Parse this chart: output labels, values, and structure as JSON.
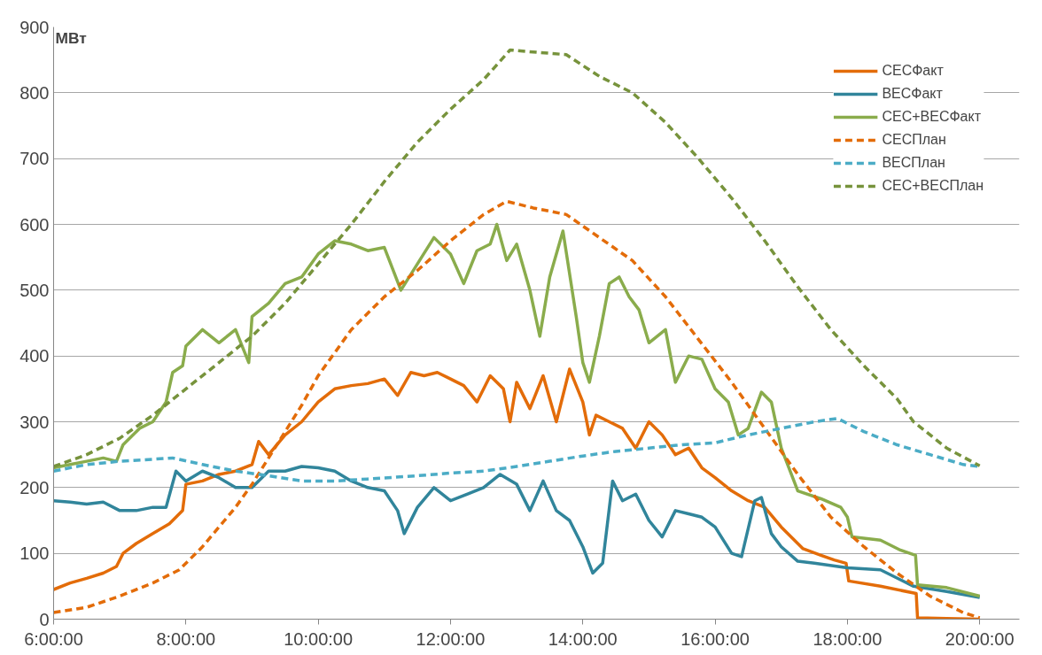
{
  "chart_data": {
    "type": "line",
    "ylabel": "МВт",
    "xlim": [
      6,
      20.6
    ],
    "ylim": [
      0,
      900
    ],
    "xticks": [
      {
        "value": 6,
        "label": "6:00:00"
      },
      {
        "value": 8,
        "label": "8:00:00"
      },
      {
        "value": 10,
        "label": "10:00:00"
      },
      {
        "value": 12,
        "label": "12:00:00"
      },
      {
        "value": 14,
        "label": "14:00:00"
      },
      {
        "value": 16,
        "label": "16:00:00"
      },
      {
        "value": 18,
        "label": "18:00:00"
      },
      {
        "value": 20,
        "label": "20:00:00"
      }
    ],
    "yticks": [
      0,
      100,
      200,
      300,
      400,
      500,
      600,
      700,
      800,
      900
    ],
    "grid": "y",
    "legend": "top right",
    "marker": "none",
    "series": [
      {
        "name": "СЕСФакт",
        "color": "#e36c09",
        "line_style": "solid",
        "x": [
          6.0,
          6.25,
          6.5,
          6.75,
          6.95,
          7.05,
          7.25,
          7.5,
          7.75,
          7.95,
          8.0,
          8.25,
          8.5,
          8.75,
          9.0,
          9.1,
          9.25,
          9.5,
          9.75,
          10.0,
          10.25,
          10.5,
          10.75,
          11.0,
          11.2,
          11.4,
          11.6,
          11.8,
          12.0,
          12.2,
          12.4,
          12.6,
          12.8,
          12.9,
          13.0,
          13.2,
          13.4,
          13.6,
          13.8,
          14.0,
          14.1,
          14.2,
          14.4,
          14.6,
          14.8,
          15.0,
          15.2,
          15.4,
          15.6,
          15.8,
          16.0,
          16.25,
          16.5,
          16.75,
          17.0,
          17.33,
          17.6,
          17.8,
          17.98,
          18.02,
          18.5,
          19.04,
          19.06,
          19.5,
          20.0
        ],
        "values": [
          45,
          55,
          62,
          70,
          80,
          100,
          115,
          130,
          145,
          165,
          205,
          210,
          220,
          225,
          235,
          270,
          250,
          280,
          300,
          330,
          350,
          355,
          358,
          365,
          340,
          375,
          370,
          375,
          365,
          355,
          330,
          370,
          350,
          300,
          360,
          320,
          370,
          300,
          380,
          330,
          280,
          310,
          300,
          290,
          260,
          300,
          280,
          250,
          260,
          230,
          215,
          195,
          180,
          170,
          140,
          107,
          97,
          90,
          85,
          58,
          50,
          39,
          2,
          1,
          0
        ]
      },
      {
        "name": "ВЕСФакт",
        "color": "#31859b",
        "line_style": "solid",
        "x": [
          6.0,
          6.25,
          6.5,
          6.75,
          7.0,
          7.25,
          7.5,
          7.7,
          7.85,
          8.0,
          8.25,
          8.5,
          8.75,
          9.0,
          9.25,
          9.5,
          9.75,
          10.0,
          10.25,
          10.5,
          10.75,
          11.0,
          11.2,
          11.3,
          11.5,
          11.75,
          12.0,
          12.25,
          12.5,
          12.75,
          13.0,
          13.2,
          13.4,
          13.6,
          13.8,
          14.0,
          14.15,
          14.3,
          14.45,
          14.6,
          14.8,
          15.0,
          15.2,
          15.4,
          15.6,
          15.8,
          16.0,
          16.25,
          16.4,
          16.6,
          16.7,
          16.85,
          17.0,
          17.25,
          17.5,
          18.0,
          18.5,
          19.0,
          19.5,
          20.0
        ],
        "values": [
          180,
          178,
          175,
          178,
          165,
          165,
          170,
          170,
          225,
          210,
          225,
          215,
          200,
          200,
          225,
          225,
          232,
          230,
          225,
          210,
          200,
          195,
          165,
          130,
          170,
          200,
          180,
          190,
          200,
          220,
          205,
          165,
          210,
          165,
          150,
          110,
          70,
          85,
          210,
          180,
          190,
          150,
          125,
          165,
          160,
          155,
          140,
          100,
          95,
          180,
          185,
          130,
          110,
          88,
          85,
          78,
          75,
          50,
          42,
          33
        ]
      },
      {
        "name": "СЕС+ВЕСФакт",
        "color": "#8aac4c",
        "line_style": "solid",
        "x": [
          6.0,
          6.25,
          6.5,
          6.75,
          6.95,
          7.05,
          7.3,
          7.5,
          7.7,
          7.8,
          7.95,
          8.0,
          8.25,
          8.5,
          8.75,
          8.95,
          9.0,
          9.25,
          9.5,
          9.75,
          10.0,
          10.25,
          10.5,
          10.75,
          11.0,
          11.25,
          11.5,
          11.75,
          12.0,
          12.2,
          12.4,
          12.6,
          12.7,
          12.85,
          13.0,
          13.2,
          13.35,
          13.5,
          13.7,
          13.9,
          14.0,
          14.1,
          14.25,
          14.4,
          14.55,
          14.7,
          14.85,
          15.0,
          15.25,
          15.4,
          15.6,
          15.8,
          16.0,
          16.2,
          16.35,
          16.5,
          16.7,
          16.85,
          17.0,
          17.25,
          17.6,
          17.9,
          18.0,
          18.07,
          18.5,
          18.8,
          19.03,
          19.06,
          19.5,
          20.0
        ],
        "values": [
          230,
          235,
          240,
          245,
          240,
          265,
          290,
          300,
          330,
          375,
          385,
          415,
          440,
          420,
          440,
          390,
          460,
          480,
          510,
          520,
          555,
          575,
          570,
          560,
          565,
          500,
          540,
          580,
          555,
          510,
          560,
          570,
          600,
          545,
          570,
          500,
          430,
          520,
          590,
          460,
          390,
          360,
          430,
          510,
          520,
          490,
          470,
          420,
          440,
          360,
          400,
          395,
          350,
          330,
          280,
          290,
          345,
          330,
          260,
          195,
          183,
          170,
          155,
          125,
          120,
          105,
          97,
          52,
          48,
          35
        ]
      },
      {
        "name": "СЕСПлан",
        "color": "#e36c09",
        "line_style": "dashed",
        "x": [
          6.0,
          6.5,
          7.0,
          7.5,
          7.9,
          8.25,
          8.5,
          8.75,
          9.0,
          9.25,
          9.5,
          9.75,
          10.0,
          10.5,
          11.0,
          11.5,
          12.0,
          12.5,
          12.85,
          13.25,
          13.75,
          14.25,
          14.75,
          15.25,
          15.75,
          16.25,
          16.75,
          17.25,
          17.75,
          18.25,
          18.75,
          19.25,
          19.75,
          20.0
        ],
        "values": [
          10,
          18,
          35,
          55,
          75,
          110,
          140,
          170,
          205,
          245,
          285,
          325,
          370,
          440,
          490,
          530,
          575,
          615,
          635,
          625,
          615,
          580,
          545,
          490,
          425,
          360,
          290,
          220,
          155,
          110,
          70,
          35,
          10,
          2
        ]
      },
      {
        "name": "ВЕСПлан",
        "color": "#4bacc6",
        "line_style": "dashed",
        "x": [
          6.0,
          6.5,
          7.0,
          7.5,
          7.8,
          8.25,
          8.75,
          9.25,
          9.75,
          10.25,
          10.75,
          11.5,
          12.0,
          12.5,
          13.0,
          13.5,
          14.0,
          14.5,
          15.0,
          15.5,
          16.0,
          16.5,
          17.0,
          17.5,
          17.85,
          18.25,
          18.75,
          19.25,
          19.75,
          20.0
        ],
        "values": [
          225,
          235,
          240,
          243,
          245,
          235,
          225,
          218,
          210,
          210,
          213,
          218,
          222,
          225,
          232,
          240,
          248,
          255,
          260,
          265,
          268,
          280,
          290,
          300,
          305,
          285,
          265,
          250,
          235,
          232
        ]
      },
      {
        "name": "СЕС+ВЕСПлан",
        "color": "#77933c",
        "line_style": "dashed",
        "x": [
          6.0,
          6.5,
          7.0,
          7.5,
          8.0,
          8.5,
          9.0,
          9.5,
          10.0,
          10.5,
          11.0,
          11.5,
          12.0,
          12.5,
          12.9,
          13.25,
          13.75,
          14.25,
          14.75,
          15.25,
          15.75,
          16.25,
          16.75,
          17.25,
          17.75,
          18.25,
          18.75,
          19.0,
          19.5,
          20.0
        ],
        "values": [
          232,
          250,
          275,
          310,
          350,
          390,
          430,
          480,
          540,
          600,
          665,
          725,
          775,
          820,
          865,
          862,
          858,
          825,
          800,
          755,
          700,
          640,
          575,
          505,
          440,
          385,
          335,
          300,
          260,
          233
        ]
      }
    ]
  }
}
